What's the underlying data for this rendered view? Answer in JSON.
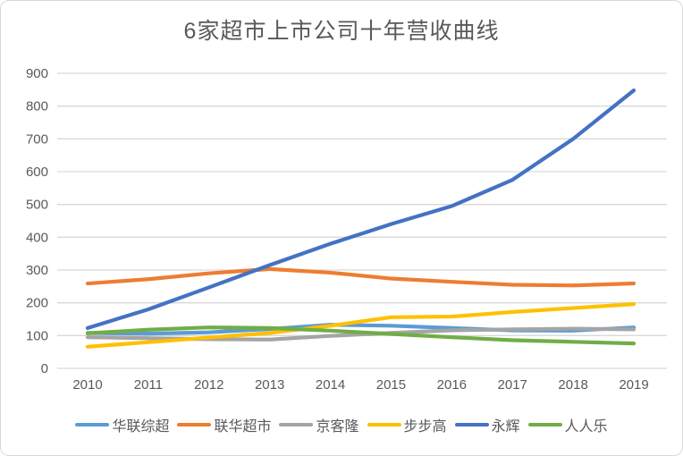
{
  "chart_data": {
    "type": "line",
    "title": "6家超市上市公司十年营收曲线",
    "categories": [
      "2010",
      "2011",
      "2012",
      "2013",
      "2014",
      "2015",
      "2016",
      "2017",
      "2018",
      "2019"
    ],
    "series": [
      {
        "name": "华联综超",
        "color": "#5B9BD5",
        "values": [
          108,
          106,
          110,
          120,
          133,
          130,
          123,
          116,
          115,
          125
        ]
      },
      {
        "name": "联华超市",
        "color": "#ED7D31",
        "values": [
          259,
          272,
          290,
          303,
          292,
          274,
          264,
          255,
          253,
          259
        ]
      },
      {
        "name": "京客隆",
        "color": "#A5A5A5",
        "values": [
          95,
          92,
          89,
          88,
          99,
          108,
          116,
          119,
          121,
          119
        ]
      },
      {
        "name": "步步高",
        "color": "#FFC000",
        "values": [
          66,
          80,
          94,
          108,
          130,
          156,
          158,
          172,
          184,
          196
        ]
      },
      {
        "name": "永辉",
        "color": "#4472C4",
        "values": [
          123,
          180,
          247,
          315,
          380,
          440,
          495,
          575,
          700,
          848
        ]
      },
      {
        "name": "人人乐",
        "color": "#70AD47",
        "values": [
          107,
          118,
          125,
          123,
          115,
          105,
          95,
          86,
          81,
          76
        ]
      }
    ],
    "xlabel": "",
    "ylabel": "",
    "ylim": [
      0,
      900
    ],
    "ytick_step": 100,
    "grid": true,
    "gridline_color": "#D9D9D9",
    "axis_text_color": "#595959",
    "legend_position": "bottom"
  }
}
